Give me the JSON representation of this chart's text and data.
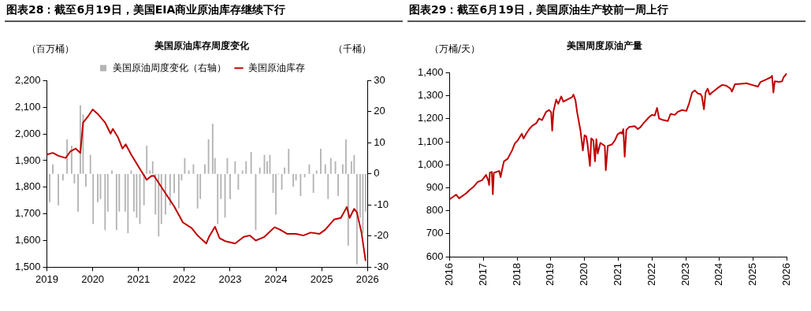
{
  "chart_data": [
    {
      "type": "bar",
      "title": "图表28：截至6月19日，美国EIA商业原油库存继续下行",
      "subtitle": "美国原油库存周度变化",
      "ylabel": "（百万桶）",
      "y2label": "（千桶）",
      "xlim": [
        2019,
        2026
      ],
      "xticks": [
        2019,
        2020,
        2021,
        2022,
        2023,
        2024,
        2025,
        2026
      ],
      "ylim": [
        1500,
        2200
      ],
      "yticks": [
        {
          "value": 1500,
          "label": "1,500"
        },
        {
          "value": 1600,
          "label": "1,600"
        },
        {
          "value": 1700,
          "label": "1,700"
        },
        {
          "value": 1800,
          "label": "1,800"
        },
        {
          "value": 1900,
          "label": "1,900"
        },
        {
          "value": 2000,
          "label": "2,000"
        },
        {
          "value": 2100,
          "label": "2,100"
        },
        {
          "value": 2200,
          "label": "2,200"
        }
      ],
      "y2lim": [
        -30,
        30
      ],
      "y2ticks": [
        -30,
        -20,
        -10,
        0,
        10,
        20,
        30
      ],
      "grid": false,
      "legend": "top",
      "series": [
        {
          "name": "美国原油周度变化（右轴）",
          "type": "bar",
          "axis": "y2",
          "color": "#b4b4b4",
          "x": [
            2019.06,
            2019.13,
            2019.25,
            2019.35,
            2019.44,
            2019.54,
            2019.6,
            2019.68,
            2019.73,
            2019.79,
            2019.85,
            2019.95,
            2020.01,
            2020.11,
            2020.17,
            2020.27,
            2020.33,
            2020.42,
            2020.52,
            2020.58,
            2020.71,
            2020.77,
            2020.84,
            2020.9,
            2020.96,
            2021.03,
            2021.12,
            2021.18,
            2021.25,
            2021.31,
            2021.37,
            2021.44,
            2021.5,
            2021.59,
            2021.69,
            2021.78,
            2021.88,
            2021.94,
            2022.01,
            2022.1,
            2022.2,
            2022.29,
            2022.35,
            2022.45,
            2022.53,
            2022.62,
            2022.67,
            2022.73,
            2022.8,
            2022.89,
            2022.94,
            2023.0,
            2023.11,
            2023.18,
            2023.27,
            2023.35,
            2023.46,
            2023.56,
            2023.65,
            2023.75,
            2023.81,
            2023.87,
            2023.94,
            2024.0,
            2024.06,
            2024.13,
            2024.19,
            2024.28,
            2024.38,
            2024.44,
            2024.54,
            2024.63,
            2024.73,
            2024.82,
            2024.89,
            2024.98,
            2025.08,
            2025.14,
            2025.2,
            2025.3,
            2025.36,
            2025.46,
            2025.53,
            2025.58,
            2025.65,
            2025.71,
            2025.77,
            2025.84,
            2025.9,
            2025.96
          ],
          "values": [
            -9,
            3,
            -10,
            -2,
            11,
            9,
            -3,
            -12,
            22,
            19,
            -4,
            6,
            -16,
            -9,
            -8,
            -18,
            -12,
            1,
            -18,
            -12,
            -12,
            -19,
            1,
            -12,
            -14,
            -16,
            -10,
            9,
            1,
            4,
            -13,
            -20,
            -16,
            -13,
            -10,
            -6,
            -11,
            -2,
            5,
            1,
            3,
            -11,
            -8,
            3,
            11,
            16,
            5,
            -16,
            -8,
            -14,
            5,
            -8,
            4,
            -5,
            1,
            4,
            7,
            -18,
            2,
            6,
            4,
            6,
            -6,
            -13,
            0,
            -5,
            2,
            8,
            -4,
            -2,
            -7,
            -1,
            3,
            -6,
            1,
            8,
            3,
            -8,
            5,
            4,
            -7,
            3,
            11,
            -23,
            4,
            6,
            -29,
            -14,
            -19,
            -12
          ]
        },
        {
          "name": "美国原油库存",
          "type": "line",
          "axis": "y",
          "color": "#c00000",
          "x": [
            2019.0,
            2019.13,
            2019.25,
            2019.41,
            2019.51,
            2019.63,
            2019.73,
            2019.79,
            2019.89,
            2020.0,
            2020.11,
            2020.27,
            2020.39,
            2020.44,
            2020.55,
            2020.65,
            2020.72,
            2020.84,
            2021.03,
            2021.18,
            2021.28,
            2021.34,
            2021.53,
            2021.78,
            2021.97,
            2022.16,
            2022.29,
            2022.48,
            2022.54,
            2022.67,
            2022.77,
            2022.89,
            2023.11,
            2023.3,
            2023.43,
            2023.56,
            2023.75,
            2023.97,
            2024.09,
            2024.25,
            2024.44,
            2024.6,
            2024.76,
            2024.95,
            2025.08,
            2025.27,
            2025.42,
            2025.55,
            2025.61,
            2025.71,
            2025.77,
            2025.87,
            2025.96
          ],
          "values": [
            1923,
            1929,
            1918,
            1910,
            1934,
            1945,
            1929,
            2043,
            2064,
            2092,
            2075,
            2043,
            2001,
            2019,
            1988,
            1945,
            1961,
            1923,
            1869,
            1828,
            1842,
            1843,
            1793,
            1728,
            1668,
            1647,
            1619,
            1589,
            1614,
            1652,
            1609,
            1598,
            1589,
            1614,
            1619,
            1600,
            1614,
            1650,
            1641,
            1625,
            1625,
            1619,
            1630,
            1625,
            1641,
            1679,
            1685,
            1726,
            1685,
            1719,
            1706,
            1630,
            1524
          ]
        }
      ]
    },
    {
      "type": "line",
      "title": "图表29：截至6月19日，美国原油生产较前一周上行",
      "subtitle": "美国周度原油产量",
      "ylabel": "（万桶/天）",
      "xlim": [
        2016,
        2026
      ],
      "xticks": [
        2016,
        2017,
        2018,
        2019,
        2020,
        2021,
        2022,
        2023,
        2024,
        2025,
        2026
      ],
      "ylim": [
        600,
        1400
      ],
      "yticks": [
        600,
        700,
        800,
        900,
        {
          "value": 1000,
          "label": "1,000"
        },
        {
          "value": 1100,
          "label": "1,100"
        },
        {
          "value": 1200,
          "label": "1,200"
        },
        {
          "value": 1300,
          "label": "1,300"
        },
        {
          "value": 1400,
          "label": "1,400"
        }
      ],
      "grid": false,
      "legend": false,
      "x": [
        2016.0,
        2016.19,
        2016.28,
        2016.49,
        2016.58,
        2016.7,
        2016.83,
        2016.96,
        2017.08,
        2017.15,
        2017.17,
        2017.19,
        2017.25,
        2017.28,
        2017.31,
        2017.47,
        2017.51,
        2017.55,
        2017.61,
        2017.72,
        2017.85,
        2017.93,
        2018.02,
        2018.14,
        2018.19,
        2018.27,
        2018.36,
        2018.44,
        2018.57,
        2018.65,
        2018.74,
        2018.86,
        2018.95,
        2019.01,
        2019.04,
        2019.08,
        2019.16,
        2019.22,
        2019.31,
        2019.37,
        2019.46,
        2019.63,
        2019.67,
        2019.73,
        2019.78,
        2019.88,
        2019.95,
        2020.0,
        2020.05,
        2020.09,
        2020.16,
        2020.2,
        2020.26,
        2020.31,
        2020.35,
        2020.39,
        2020.47,
        2020.6,
        2020.63,
        2020.69,
        2020.81,
        2020.9,
        2020.98,
        2021.07,
        2021.11,
        2021.15,
        2021.19,
        2021.24,
        2021.32,
        2021.49,
        2021.58,
        2021.66,
        2021.75,
        2021.92,
        2022.0,
        2022.08,
        2022.15,
        2022.21,
        2022.34,
        2022.47,
        2022.55,
        2022.68,
        2022.76,
        2022.89,
        2023.02,
        2023.1,
        2023.19,
        2023.27,
        2023.36,
        2023.44,
        2023.48,
        2023.54,
        2023.59,
        2023.65,
        2023.71,
        2023.78,
        2023.95,
        2024.08,
        2024.2,
        2024.33,
        2024.37,
        2024.46,
        2024.63,
        2024.8,
        2024.97,
        2025.14,
        2025.22,
        2025.39,
        2025.52,
        2025.56,
        2025.6,
        2025.64,
        2025.77,
        2025.86,
        2025.9,
        2026.0
      ],
      "series": [
        {
          "color": "#c00000",
          "values": [
            850,
            870,
            854,
            876,
            889,
            903,
            925,
            933,
            956,
            929,
            912,
            965,
            969,
            872,
            965,
            973,
            946,
            976,
            1015,
            1026,
            1062,
            1092,
            1106,
            1135,
            1114,
            1135,
            1155,
            1168,
            1181,
            1201,
            1194,
            1230,
            1238,
            1228,
            1148,
            1234,
            1283,
            1265,
            1297,
            1274,
            1281,
            1294,
            1305,
            1281,
            1228,
            1148,
            1062,
            1128,
            1124,
            1088,
            995,
            1115,
            1106,
            1015,
            1111,
            1049,
            1095,
            1082,
            976,
            1082,
            1088,
            1106,
            1132,
            1141,
            1135,
            1155,
            1035,
            1151,
            1164,
            1168,
            1155,
            1164,
            1181,
            1208,
            1217,
            1214,
            1247,
            1201,
            1194,
            1190,
            1221,
            1217,
            1230,
            1238,
            1234,
            1267,
            1314,
            1323,
            1310,
            1307,
            1297,
            1241,
            1314,
            1331,
            1305,
            1314,
            1334,
            1347,
            1344,
            1331,
            1318,
            1350,
            1352,
            1354,
            1347,
            1340,
            1360,
            1371,
            1380,
            1387,
            1314,
            1363,
            1360,
            1363,
            1380,
            1397
          ]
        }
      ]
    }
  ]
}
